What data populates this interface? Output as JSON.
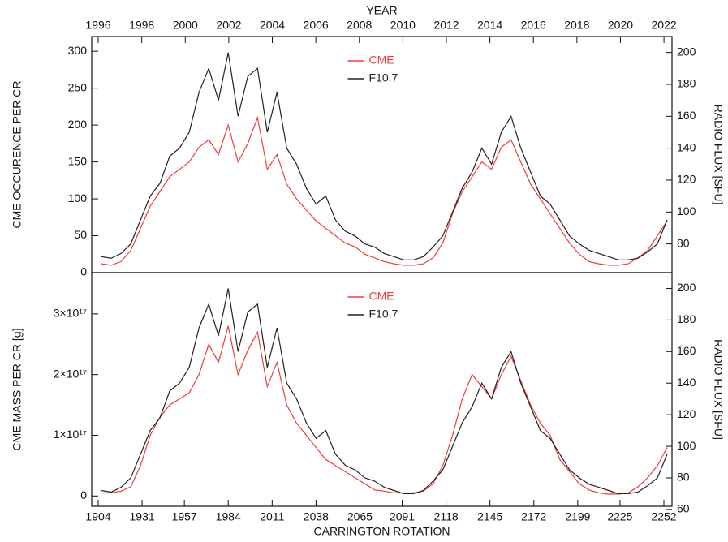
{
  "chart_data": [
    {
      "type": "line",
      "x2label": "YEAR",
      "ylabel": "CME OCCURENCE PER CR",
      "y2label": "RADIO FLUX [SFU]",
      "xlim": [
        1900,
        2257
      ],
      "x2lim": [
        1995.7,
        2022.37
      ],
      "x2ticks": [
        1996,
        1998,
        2000,
        2002,
        2004,
        2006,
        2008,
        2010,
        2012,
        2014,
        2016,
        2018,
        2020,
        2022
      ],
      "ylim": [
        0,
        320
      ],
      "yticks": [
        0,
        50,
        100,
        150,
        200,
        250,
        300
      ],
      "y2lim": [
        62,
        210
      ],
      "y2ticks": [
        80,
        100,
        120,
        140,
        160,
        180,
        200
      ],
      "legend": "upper center",
      "x": [
        1906,
        1912,
        1918,
        1924,
        1930,
        1936,
        1942,
        1948,
        1954,
        1960,
        1966,
        1972,
        1978,
        1984,
        1990,
        1996,
        2002,
        2008,
        2014,
        2020,
        2026,
        2032,
        2038,
        2044,
        2050,
        2056,
        2062,
        2068,
        2074,
        2080,
        2086,
        2092,
        2098,
        2104,
        2110,
        2116,
        2122,
        2128,
        2134,
        2140,
        2146,
        2152,
        2158,
        2164,
        2170,
        2176,
        2182,
        2188,
        2194,
        2200,
        2206,
        2212,
        2218,
        2224,
        2230,
        2236,
        2242,
        2248,
        2254
      ],
      "series": [
        {
          "name": "CME",
          "color": "#f03c3c",
          "values": [
            12,
            10,
            15,
            30,
            60,
            90,
            110,
            130,
            140,
            150,
            170,
            180,
            160,
            200,
            150,
            175,
            210,
            140,
            160,
            120,
            100,
            85,
            70,
            60,
            50,
            40,
            35,
            25,
            20,
            15,
            12,
            10,
            10,
            12,
            20,
            40,
            80,
            110,
            130,
            150,
            140,
            170,
            180,
            150,
            120,
            100,
            80,
            60,
            40,
            25,
            15,
            12,
            10,
            10,
            12,
            20,
            30,
            50,
            70
          ]
        },
        {
          "name": "F10.7",
          "color": "#222222",
          "axis": "y2",
          "values": [
            72,
            71,
            74,
            80,
            95,
            110,
            118,
            135,
            140,
            150,
            175,
            190,
            170,
            200,
            160,
            185,
            190,
            150,
            175,
            140,
            130,
            115,
            105,
            110,
            95,
            88,
            85,
            80,
            78,
            74,
            72,
            70,
            70,
            72,
            78,
            85,
            100,
            115,
            125,
            140,
            130,
            150,
            160,
            140,
            125,
            110,
            105,
            95,
            85,
            80,
            76,
            74,
            72,
            70,
            70,
            71,
            75,
            80,
            95
          ]
        }
      ]
    },
    {
      "type": "line",
      "xlabel": "CARRINGTON ROTATION",
      "ylabel": "CME MASS PER CR [g]",
      "y2label": "RADIO FLUX [SFU]",
      "xlim": [
        1900,
        2257
      ],
      "xticks": [
        1904,
        1931,
        1957,
        1984,
        2011,
        2038,
        2065,
        2091,
        2118,
        2145,
        2172,
        2199,
        2225,
        2252
      ],
      "ylim": [
        -1.7e+16,
        3.68e+17
      ],
      "yticks": [
        0,
        {
          "value": 1e+17,
          "label": "1×10¹⁷"
        },
        {
          "value": 2e+17,
          "label": "2×10¹⁷"
        },
        {
          "value": 3e+17,
          "label": "3×10¹⁷"
        }
      ],
      "y2lim": [
        62,
        210
      ],
      "y2ticks": [
        60,
        80,
        100,
        120,
        140,
        160,
        180,
        200
      ],
      "legend": "upper center",
      "x": [
        1906,
        1912,
        1918,
        1924,
        1930,
        1936,
        1942,
        1948,
        1954,
        1960,
        1966,
        1972,
        1978,
        1984,
        1990,
        1996,
        2002,
        2008,
        2014,
        2020,
        2026,
        2032,
        2038,
        2044,
        2050,
        2056,
        2062,
        2068,
        2074,
        2080,
        2086,
        2092,
        2098,
        2104,
        2110,
        2116,
        2122,
        2128,
        2134,
        2140,
        2146,
        2152,
        2158,
        2164,
        2170,
        2176,
        2182,
        2188,
        2194,
        2200,
        2206,
        2212,
        2218,
        2224,
        2230,
        2236,
        2242,
        2248,
        2254
      ],
      "series": [
        {
          "name": "CME",
          "color": "#f03c3c",
          "values": [
            5000000000000000.0,
            5000000000000000.0,
            8000000000000000.0,
            1.5e+16,
            5e+16,
            1e+17,
            1.3e+17,
            1.5e+17,
            1.6e+17,
            1.7e+17,
            2e+17,
            2.5e+17,
            2.2e+17,
            2.8e+17,
            2e+17,
            2.4e+17,
            2.7e+17,
            1.8e+17,
            2.2e+17,
            1.5e+17,
            1.2e+17,
            1e+17,
            8e+16,
            6e+16,
            5e+16,
            4e+16,
            3e+16,
            2e+16,
            1e+16,
            8000000000000000.0,
            5000000000000000.0,
            5000000000000000.0,
            5000000000000000.0,
            8000000000000000.0,
            2e+16,
            5e+16,
            1e+17,
            1.6e+17,
            2e+17,
            1.8e+17,
            1.6e+17,
            2e+17,
            2.3e+17,
            1.9e+17,
            1.5e+17,
            1.2e+17,
            1e+17,
            6e+16,
            4e+16,
            2e+16,
            1e+16,
            5000000000000000.0,
            3000000000000000.0,
            3000000000000000.0,
            5000000000000000.0,
            1.5e+16,
            3e+16,
            5e+16,
            8e+16
          ]
        },
        {
          "name": "F10.7",
          "color": "#222222",
          "axis": "y2",
          "values": [
            72,
            71,
            74,
            80,
            95,
            110,
            118,
            135,
            140,
            150,
            175,
            190,
            170,
            200,
            160,
            185,
            190,
            150,
            175,
            140,
            130,
            115,
            105,
            110,
            95,
            88,
            85,
            80,
            78,
            74,
            72,
            70,
            70,
            72,
            78,
            85,
            100,
            115,
            125,
            140,
            130,
            150,
            160,
            140,
            125,
            110,
            105,
            95,
            85,
            80,
            76,
            74,
            72,
            70,
            70,
            71,
            75,
            80,
            95
          ]
        }
      ]
    }
  ]
}
